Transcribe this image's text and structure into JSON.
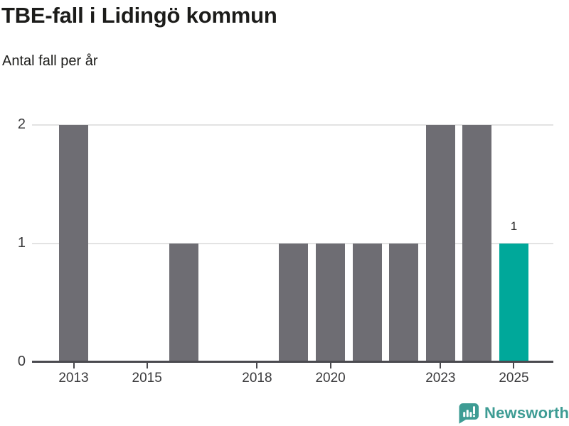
{
  "header": {
    "title": "TBE-fall i Lidingö kommun",
    "subtitle": "Antal fall per år"
  },
  "footer": {
    "brand": "Newsworthy",
    "logo_icon": "newsworthy-speech-bubble-bar-chart-icon"
  },
  "colors": {
    "bar": "#6e6d73",
    "highlight": "#00a89a",
    "grid": "#e3e3e3",
    "axis": "#4a4a4f",
    "text": "#1c1c1a",
    "tick_label": "#3a3a3c",
    "value_label": "#222222",
    "brand_teal": "#3e9c94",
    "background": "#ffffff"
  },
  "chart_data": {
    "type": "bar",
    "title": "TBE-fall i Lidingö kommun",
    "subtitle": "Antal fall per år",
    "xlabel": "",
    "ylabel": "Antal fall per år",
    "categories": [
      2012,
      2013,
      2014,
      2015,
      2016,
      2017,
      2018,
      2019,
      2020,
      2021,
      2022,
      2023,
      2024,
      2025
    ],
    "values": [
      0,
      2,
      0,
      0,
      1,
      0,
      0,
      1,
      1,
      1,
      1,
      2,
      2,
      1
    ],
    "highlight_category": 2025,
    "highlight_value_label": "1",
    "ylim": [
      0,
      2
    ],
    "yticks": [
      0,
      1,
      2
    ],
    "xticks": [
      2013,
      2015,
      2018,
      2020,
      2023,
      2025
    ],
    "grid": "horizontal",
    "legend": "none"
  }
}
